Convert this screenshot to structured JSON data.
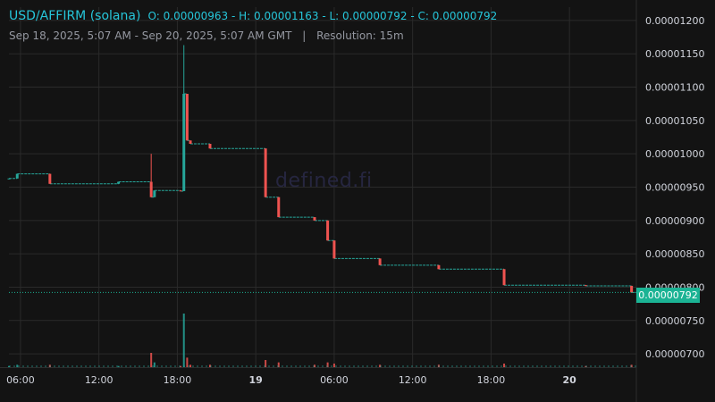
{
  "header": {
    "symbol": "USD/AFFIRM (solana)",
    "ohlc": "O: 0.00000963 - H: 0.00001163 - L: 0.00000792 - C: 0.00000792",
    "range": "Sep 18, 2025, 5:07 AM - Sep 20, 2025, 5:07 AM GMT",
    "separator": "|",
    "resolution": "Resolution: 15m"
  },
  "watermark": "defined.fi",
  "last_price_label": "0.00000792",
  "colors": {
    "background": "#131313",
    "grid": "#2a2a2a",
    "up": "#26a69a",
    "down": "#ef5350",
    "accent": "#1bb394",
    "text": "#d1d4dc"
  },
  "chart_data": {
    "type": "candlestick",
    "y_axis": {
      "range": [
        6.8e-06,
        1.22e-05
      ],
      "ticks": [
        "0.00001200",
        "0.00001150",
        "0.00001100",
        "0.00001050",
        "0.00001000",
        "0.00000950",
        "0.00000900",
        "0.00000850",
        "0.00000800",
        "0.00000750",
        "0.00000700"
      ]
    },
    "x_axis": {
      "range": [
        "2025-09-18T05:07",
        "2025-09-20T05:07"
      ],
      "ticks": [
        {
          "t": "2025-09-18T06:00",
          "label": "06:00",
          "bold": false
        },
        {
          "t": "2025-09-18T12:00",
          "label": "12:00",
          "bold": false
        },
        {
          "t": "2025-09-18T18:00",
          "label": "18:00",
          "bold": false
        },
        {
          "t": "2025-09-19T00:00",
          "label": "19",
          "bold": true
        },
        {
          "t": "2025-09-19T06:00",
          "label": "06:00",
          "bold": false
        },
        {
          "t": "2025-09-19T12:00",
          "label": "12:00",
          "bold": false
        },
        {
          "t": "2025-09-19T18:00",
          "label": "18:00",
          "bold": false
        },
        {
          "t": "2025-09-20T00:00",
          "label": "20",
          "bold": true
        }
      ]
    },
    "candles": [
      {
        "t": "2025-09-18T05:07",
        "o": 9.63e-06,
        "h": 9.63e-06,
        "l": 9.63e-06,
        "c": 9.63e-06,
        "v": 1
      },
      {
        "t": "2025-09-18T05:45",
        "o": 9.63e-06,
        "h": 9.7e-06,
        "l": 9.63e-06,
        "c": 9.7e-06,
        "v": 2
      },
      {
        "t": "2025-09-18T08:15",
        "o": 9.7e-06,
        "h": 9.7e-06,
        "l": 9.55e-06,
        "c": 9.55e-06,
        "v": 2
      },
      {
        "t": "2025-09-18T13:30",
        "o": 9.55e-06,
        "h": 9.58e-06,
        "l": 9.55e-06,
        "c": 9.58e-06,
        "v": 1
      },
      {
        "t": "2025-09-18T16:00",
        "o": 9.58e-06,
        "h": 1e-05,
        "l": 9.35e-06,
        "c": 9.35e-06,
        "v": 12
      },
      {
        "t": "2025-09-18T16:15",
        "o": 9.35e-06,
        "h": 9.45e-06,
        "l": 9.35e-06,
        "c": 9.45e-06,
        "v": 4
      },
      {
        "t": "2025-09-18T18:15",
        "o": 9.45e-06,
        "h": 9.45e-06,
        "l": 9.44e-06,
        "c": 9.44e-06,
        "v": 1
      },
      {
        "t": "2025-09-18T18:30",
        "o": 9.44e-06,
        "h": 1.163e-05,
        "l": 9.44e-06,
        "c": 1.09e-05,
        "v": 45
      },
      {
        "t": "2025-09-18T18:45",
        "o": 1.09e-05,
        "h": 1.09e-05,
        "l": 1.02e-05,
        "c": 1.02e-05,
        "v": 8
      },
      {
        "t": "2025-09-18T19:00",
        "o": 1.02e-05,
        "h": 1.02e-05,
        "l": 1.015e-05,
        "c": 1.015e-05,
        "v": 2
      },
      {
        "t": "2025-09-18T20:30",
        "o": 1.015e-05,
        "h": 1.015e-05,
        "l": 1.008e-05,
        "c": 1.008e-05,
        "v": 2
      },
      {
        "t": "2025-09-19T00:45",
        "o": 1.008e-05,
        "h": 1.008e-05,
        "l": 9.35e-06,
        "c": 9.35e-06,
        "v": 6
      },
      {
        "t": "2025-09-19T01:45",
        "o": 9.35e-06,
        "h": 9.35e-06,
        "l": 9.05e-06,
        "c": 9.05e-06,
        "v": 4
      },
      {
        "t": "2025-09-19T04:30",
        "o": 9.05e-06,
        "h": 9.05e-06,
        "l": 9e-06,
        "c": 9e-06,
        "v": 2
      },
      {
        "t": "2025-09-19T05:30",
        "o": 9e-06,
        "h": 9e-06,
        "l": 8.7e-06,
        "c": 8.7e-06,
        "v": 4
      },
      {
        "t": "2025-09-19T06:00",
        "o": 8.7e-06,
        "h": 8.7e-06,
        "l": 8.43e-06,
        "c": 8.43e-06,
        "v": 3
      },
      {
        "t": "2025-09-19T09:30",
        "o": 8.43e-06,
        "h": 8.43e-06,
        "l": 8.33e-06,
        "c": 8.33e-06,
        "v": 2
      },
      {
        "t": "2025-09-19T14:00",
        "o": 8.33e-06,
        "h": 8.33e-06,
        "l": 8.27e-06,
        "c": 8.27e-06,
        "v": 2
      },
      {
        "t": "2025-09-19T19:00",
        "o": 8.27e-06,
        "h": 8.27e-06,
        "l": 8.03e-06,
        "c": 8.03e-06,
        "v": 3
      },
      {
        "t": "2025-09-20T01:15",
        "o": 8.03e-06,
        "h": 8.03e-06,
        "l": 8.02e-06,
        "c": 8.02e-06,
        "v": 1
      },
      {
        "t": "2025-09-20T04:45",
        "o": 8.02e-06,
        "h": 8.02e-06,
        "l": 7.92e-06,
        "c": 7.92e-06,
        "v": 2
      }
    ]
  }
}
